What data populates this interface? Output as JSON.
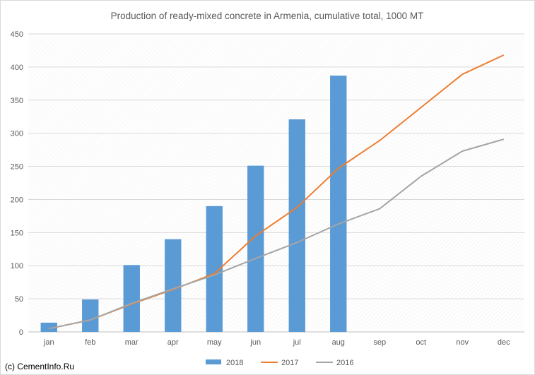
{
  "chart_data": {
    "type": "bar",
    "title": "Production of ready-mixed concrete in Armenia, cumulative total, 1000 MT",
    "categories": [
      "jan",
      "feb",
      "mar",
      "apr",
      "may",
      "jun",
      "jul",
      "aug",
      "sep",
      "oct",
      "nov",
      "dec"
    ],
    "ylim": [
      0,
      450
    ],
    "yticks": [
      0,
      50,
      100,
      150,
      200,
      250,
      300,
      350,
      400,
      450
    ],
    "grid": true,
    "legend_position": "bottom",
    "series": [
      {
        "name": "2018",
        "type": "bar",
        "color": "#5b9bd5",
        "values": [
          14,
          49,
          101,
          140,
          190,
          251,
          321,
          387,
          null,
          null,
          null,
          null
        ]
      },
      {
        "name": "2017",
        "type": "line",
        "color": "#ed7d31",
        "values": [
          5,
          18,
          42,
          64,
          88,
          145,
          188,
          247,
          289,
          339,
          389,
          418
        ]
      },
      {
        "name": "2016",
        "type": "line",
        "color": "#a5a5a5",
        "values": [
          5,
          18,
          43,
          65,
          86,
          111,
          135,
          163,
          186,
          235,
          273,
          291
        ]
      }
    ]
  },
  "footer": {
    "credit": "(c) CementInfo.Ru"
  }
}
